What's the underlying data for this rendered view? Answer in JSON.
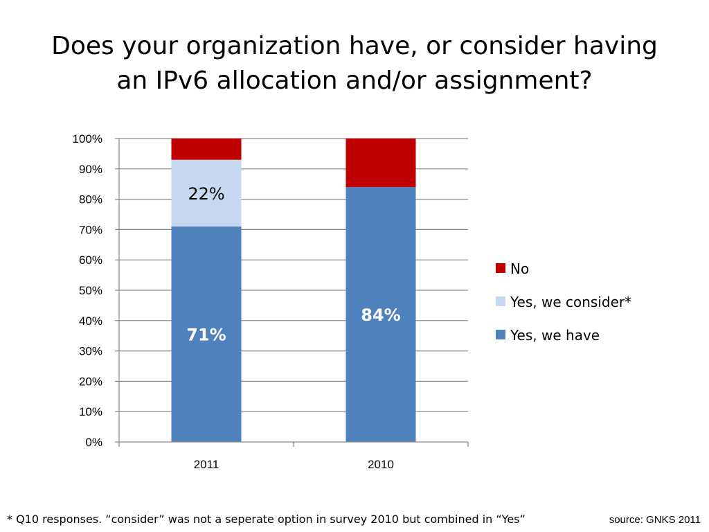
{
  "slide": {
    "title_lines": [
      "Does your organization have, or consider having",
      "an IPv6 allocation and/or assignment?"
    ],
    "footnote": "* Q10 responses. “consider” was not a seperate option in survey 2010 but combined in “Yes”",
    "source": "source: GNKS 2011"
  },
  "chart_data": {
    "type": "bar",
    "stacked": true,
    "title": "",
    "xlabel": "",
    "ylabel": "",
    "ylim": [
      0,
      100
    ],
    "yticks": [
      "0%",
      "10%",
      "20%",
      "30%",
      "40%",
      "50%",
      "60%",
      "70%",
      "80%",
      "90%",
      "100%"
    ],
    "grid": true,
    "legend_position": "right",
    "categories": [
      "2011",
      "2010"
    ],
    "series": [
      {
        "name": "Yes, we have",
        "values": [
          71,
          84
        ],
        "color": "#4F81BD",
        "labels": [
          "71%",
          "84%"
        ],
        "label_color": "#ffffff"
      },
      {
        "name": "Yes, we consider*",
        "values": [
          22,
          0
        ],
        "color": "#C6D9F1",
        "labels": [
          "22%",
          ""
        ],
        "label_color": "#000000"
      },
      {
        "name": "No",
        "values": [
          7,
          16
        ],
        "color": "#C00000",
        "labels": [
          "",
          ""
        ],
        "label_color": "#ffffff"
      }
    ],
    "legend_order": [
      "No",
      "Yes, we consider*",
      "Yes, we have"
    ]
  }
}
